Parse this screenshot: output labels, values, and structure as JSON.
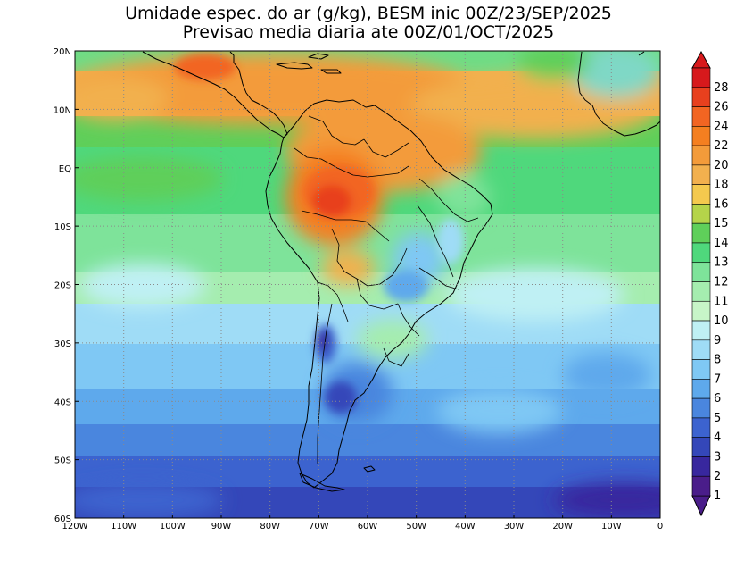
{
  "title": {
    "line1": "Umidade espec. do ar (g/kg), BESM inic 00Z/23/SEP/2025",
    "line2": "Previsao media diaria ate 00Z/01/OCT/2025"
  },
  "map": {
    "lon_range": [
      -120,
      0
    ],
    "lat_range": [
      -60,
      20
    ],
    "x_ticks": [
      {
        "value": -120,
        "label": "120W"
      },
      {
        "value": -110,
        "label": "110W"
      },
      {
        "value": -100,
        "label": "100W"
      },
      {
        "value": -90,
        "label": "90W"
      },
      {
        "value": -80,
        "label": "80W"
      },
      {
        "value": -70,
        "label": "70W"
      },
      {
        "value": -60,
        "label": "60W"
      },
      {
        "value": -50,
        "label": "50W"
      },
      {
        "value": -40,
        "label": "40W"
      },
      {
        "value": -30,
        "label": "30W"
      },
      {
        "value": -20,
        "label": "20W"
      },
      {
        "value": -10,
        "label": "10W"
      },
      {
        "value": 0,
        "label": "0"
      }
    ],
    "y_ticks": [
      {
        "value": 20,
        "label": "20N"
      },
      {
        "value": 10,
        "label": "10N"
      },
      {
        "value": 0,
        "label": "EQ"
      },
      {
        "value": -10,
        "label": "10S"
      },
      {
        "value": -20,
        "label": "20S"
      },
      {
        "value": -30,
        "label": "30S"
      },
      {
        "value": -40,
        "label": "40S"
      },
      {
        "value": -50,
        "label": "50S"
      },
      {
        "value": -60,
        "label": "60S"
      }
    ]
  },
  "colorbar": {
    "levels": [
      {
        "label": "28",
        "color": "#d7191c"
      },
      {
        "label": "26",
        "color": "#e8401e"
      },
      {
        "label": "24",
        "color": "#f26522"
      },
      {
        "label": "22",
        "color": "#f47f20"
      },
      {
        "label": "20",
        "color": "#f39b3a"
      },
      {
        "label": "18",
        "color": "#f2b04e"
      },
      {
        "label": "16",
        "color": "#f4c94e"
      },
      {
        "label": "15",
        "color": "#b5d44a"
      },
      {
        "label": "14",
        "color": "#5fcf5a"
      },
      {
        "label": "13",
        "color": "#4fd87c"
      },
      {
        "label": "12",
        "color": "#7ee39a"
      },
      {
        "label": "11",
        "color": "#a5edaf"
      },
      {
        "label": "10",
        "color": "#c7f5c8"
      },
      {
        "label": "9",
        "color": "#bff0f4"
      },
      {
        "label": "8",
        "color": "#9fdcf6"
      },
      {
        "label": "7",
        "color": "#7fc8f4"
      },
      {
        "label": "6",
        "color": "#5ea9ec"
      },
      {
        "label": "5",
        "color": "#4a86de"
      },
      {
        "label": "4",
        "color": "#3c63cf"
      },
      {
        "label": "3",
        "color": "#3447b9"
      },
      {
        "label": "2",
        "color": "#38279e"
      },
      {
        "label": "1",
        "color": "#4a1d8a"
      }
    ]
  }
}
